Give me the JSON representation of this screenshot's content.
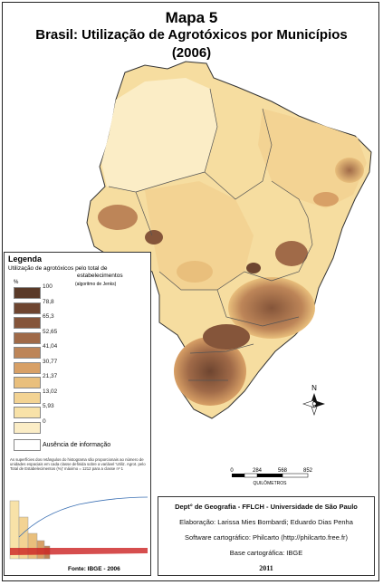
{
  "title": {
    "line1": "Mapa 5",
    "line2": "Brasil: Utilização de Agrotóxicos por Municípios",
    "line3": "(2006)"
  },
  "legend": {
    "title": "Legenda",
    "subtitle_1": "Utilização de agrotóxicos pelo total de",
    "subtitle_2": "estabelecimentos",
    "algorithm": "(algoritmo de Jenks)",
    "unit": "%",
    "classes": [
      {
        "value": "100",
        "color": "#5a3a28"
      },
      {
        "value": "78,8",
        "color": "#6e4530"
      },
      {
        "value": "65,3",
        "color": "#85553a"
      },
      {
        "value": "52,65",
        "color": "#a06a48"
      },
      {
        "value": "41,04",
        "color": "#bd8558"
      },
      {
        "value": "30,77",
        "color": "#d8a066"
      },
      {
        "value": "21,37",
        "color": "#e9bf7c"
      },
      {
        "value": "13,02",
        "color": "#f3d393"
      },
      {
        "value": "5,93",
        "color": "#f8e2a8"
      },
      {
        "value": "0",
        "color": "#fbedc6"
      }
    ],
    "no_data_label": "Ausência de informação",
    "no_data_color": "#ffffff",
    "note": "As superfícies dos retângulos do histograma são proporcionais ao número de unidades espaciais em cada classe definida sobre a variável 'Utiliz. Agrot. pelo Total de Estabelecimentos (%)' máximo = 1212 para a classe nº 1",
    "source": "Fonte: IBGE - 2006"
  },
  "scale": {
    "ticks": [
      "0",
      "284",
      "568",
      "852"
    ],
    "unit": "QUILÔMETROS"
  },
  "north": {
    "label": "N"
  },
  "credits": {
    "dept": "Dept° de Geografia - FFLCH - Universidade de São Paulo",
    "elaboracao": "Elaboração: Larissa Mies Bombardi; Eduardo Dias Penha",
    "software": "Software cartográfico: Philcarto (http://philcarto.free.fr)",
    "base": "Base cartográfica: IBGE",
    "year": "2011"
  }
}
